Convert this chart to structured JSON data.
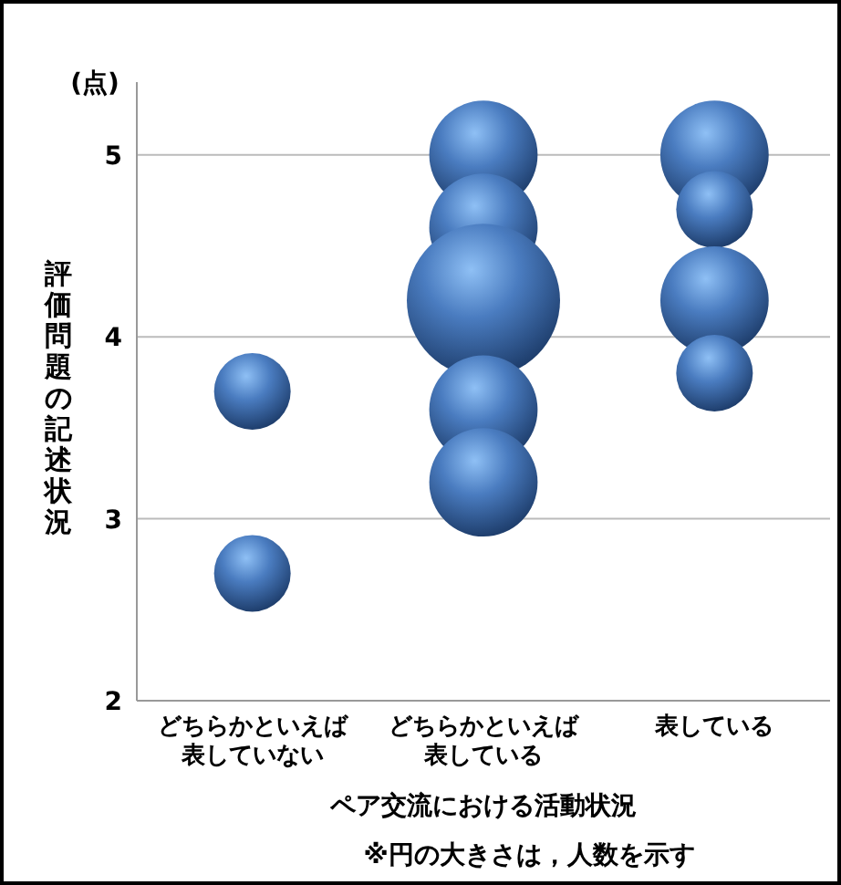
{
  "chart_data": {
    "type": "bubble",
    "ylabel": "評価問題の記述状況",
    "xlabel": "ペア交流における活動状況",
    "categories": [
      "どちらかといえば表していない",
      "どちらかといえば表している",
      "表している"
    ],
    "series": [
      {
        "color": "#4a7cc0",
        "x": [
          "どちらかといえば表していない",
          "どちらかといえば表していない",
          "どちらかといえば表している",
          "どちらかといえば表している",
          "どちらかといえば表している",
          "どちらかといえば表している",
          "どちらかといえば表している",
          "表している",
          "表している",
          "表している",
          "表している"
        ],
        "values": [
          3.7,
          2.7,
          5.0,
          4.6,
          4.2,
          3.6,
          3.2,
          5.0,
          4.7,
          4.2,
          3.8
        ],
        "sizes": [
          0.25,
          0.25,
          0.5,
          0.5,
          1,
          0.5,
          0.5,
          0.5,
          0.25,
          0.5,
          0.25
        ]
      }
    ],
    "ylim": [
      2,
      5.4
    ],
    "yticks": [
      2,
      3,
      4,
      5
    ],
    "grid": "y",
    "annotations": [
      "(点)",
      "※円の大きさは，人数を示す"
    ]
  }
}
